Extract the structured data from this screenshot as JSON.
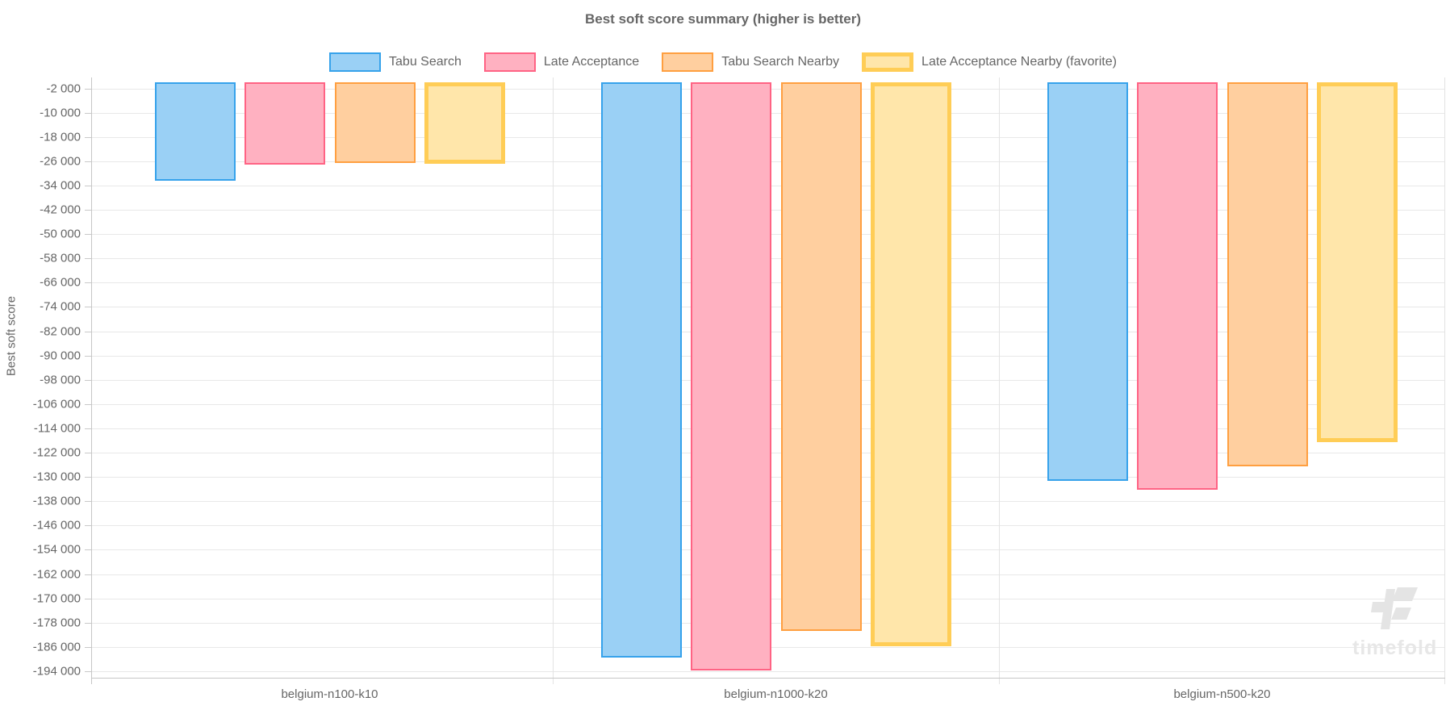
{
  "title": "Best soft score summary (higher is better)",
  "watermark_text": "timefold",
  "chart_data": {
    "type": "bar",
    "title": "Best soft score summary (higher is better)",
    "ylabel": "Best soft score",
    "xlabel": "",
    "categories": [
      "belgium-n100-k10",
      "belgium-n1000-k20",
      "belgium-n500-k20"
    ],
    "series": [
      {
        "name": "Tabu Search",
        "border_color": "#36A2EB",
        "fill_color": "#9AD0F5",
        "favorite": false,
        "values": [
          -32500,
          -189400,
          -131200
        ]
      },
      {
        "name": "Late Acceptance",
        "border_color": "#FF6384",
        "fill_color": "#FFB1C1",
        "favorite": false,
        "values": [
          -27200,
          -193700,
          -134200
        ]
      },
      {
        "name": "Tabu Search Nearby",
        "border_color": "#FF9F40",
        "fill_color": "#FFCF9F",
        "favorite": false,
        "values": [
          -26700,
          -180800,
          -126600
        ]
      },
      {
        "name": "Late Acceptance Nearby (favorite)",
        "border_color": "#FFCD56",
        "fill_color": "#FFE6AA",
        "favorite": true,
        "values": [
          -26800,
          -185900,
          -118500
        ]
      }
    ],
    "y_ticks": [
      -2000,
      -10000,
      -18000,
      -26000,
      -34000,
      -42000,
      -50000,
      -58000,
      -66000,
      -74000,
      -82000,
      -90000,
      -98000,
      -106000,
      -114000,
      -122000,
      -130000,
      -138000,
      -146000,
      -154000,
      -162000,
      -170000,
      -178000,
      -186000,
      -194000
    ],
    "ylim": [
      -196000,
      0
    ],
    "tick_format": "space-thousands",
    "grid": true,
    "legend_position": "top",
    "text_color": "#666666",
    "grid_color": "#e8e8e8",
    "axis_color": "#c6c6c6"
  }
}
